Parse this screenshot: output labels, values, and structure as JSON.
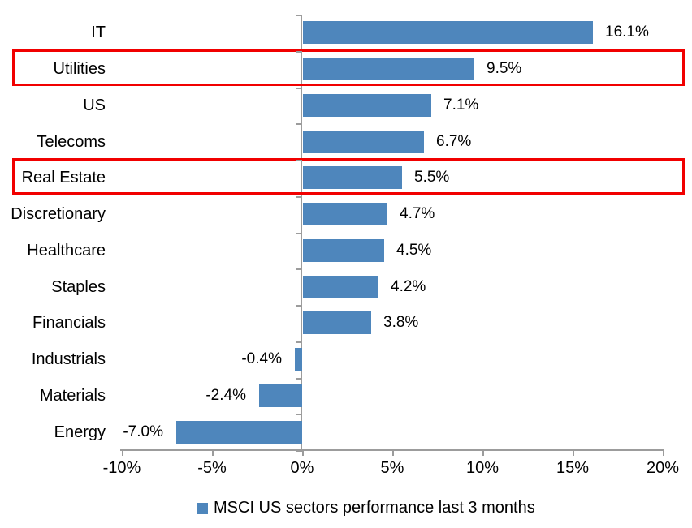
{
  "chart_data": {
    "type": "bar",
    "orientation": "horizontal",
    "title": "",
    "categories": [
      "IT",
      "Utilities",
      "US",
      "Telecoms",
      "Real Estate",
      "Discretionary",
      "Healthcare",
      "Staples",
      "Financials",
      "Industrials",
      "Materials",
      "Energy"
    ],
    "values": [
      16.1,
      9.5,
      7.1,
      6.7,
      5.5,
      4.7,
      4.5,
      4.2,
      3.8,
      -0.4,
      -2.4,
      -7.0
    ],
    "value_labels": [
      "16.1%",
      "9.5%",
      "7.1%",
      "6.7%",
      "5.5%",
      "4.7%",
      "4.5%",
      "4.2%",
      "3.8%",
      "-0.4%",
      "-2.4%",
      "-7.0%"
    ],
    "x_tick_labels": [
      "-10%",
      "-5%",
      "0%",
      "5%",
      "10%",
      "15%",
      "20%"
    ],
    "x_tick_values": [
      -10,
      -5,
      0,
      5,
      10,
      15,
      20
    ],
    "xlim": [
      -10,
      20
    ],
    "grid": "off",
    "legend_position": "bottom",
    "legend": "MSCI US sectors performance last 3 months",
    "highlighted_categories": [
      "Utilities",
      "Real Estate"
    ],
    "colors": {
      "bar": "#4e86bc",
      "axis": "#9c9c9c",
      "highlight_border": "#f10000",
      "text": "#000000"
    }
  }
}
